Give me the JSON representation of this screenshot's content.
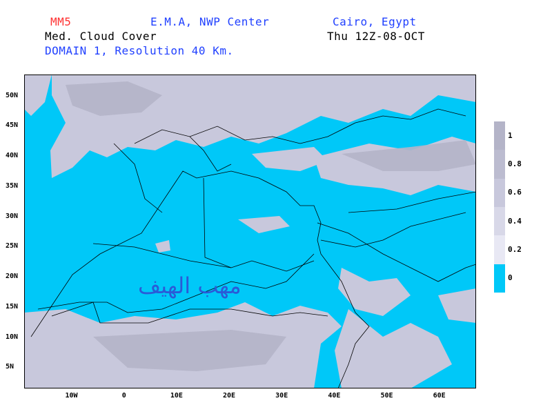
{
  "header": {
    "model": "MM5",
    "organization": "E.M.A, NWP Center",
    "location": "Cairo, Egypt",
    "field": "Med. Cloud Cover",
    "valid_time": "Thu 12Z-08-OCT",
    "domain": "DOMAIN 1, Resolution 40 Km."
  },
  "map": {
    "lat_labels": [
      "50N",
      "45N",
      "40N",
      "35N",
      "30N",
      "25N",
      "20N",
      "15N",
      "10N",
      "5N"
    ],
    "lon_labels": [
      "10W",
      "0",
      "10E",
      "20E",
      "30E",
      "40E",
      "50E",
      "60E"
    ],
    "lat_values": [
      50,
      45,
      40,
      35,
      30,
      25,
      20,
      15,
      10,
      5
    ],
    "lon_values": [
      -10,
      0,
      10,
      20,
      30,
      40,
      50,
      60
    ],
    "lat_range": [
      1.5,
      53.5
    ],
    "lon_range": [
      -19,
      67
    ],
    "colors": {
      "clear": "#00c8f8",
      "cloud_low": "#e6e6f0",
      "cloud_mid": "#c8c8dc",
      "cloud_high": "#b4b4c8",
      "boundary": "#000000"
    }
  },
  "colorbar": {
    "labels": [
      "1",
      "0.8",
      "0.6",
      "0.4",
      "0.2",
      "0"
    ],
    "colors": [
      "#b4b4c8",
      "#bcbcd0",
      "#c8c8dc",
      "#d8d8e8",
      "#e8e8f4",
      "#00c8f8"
    ]
  },
  "watermark": "مهب الهيف"
}
